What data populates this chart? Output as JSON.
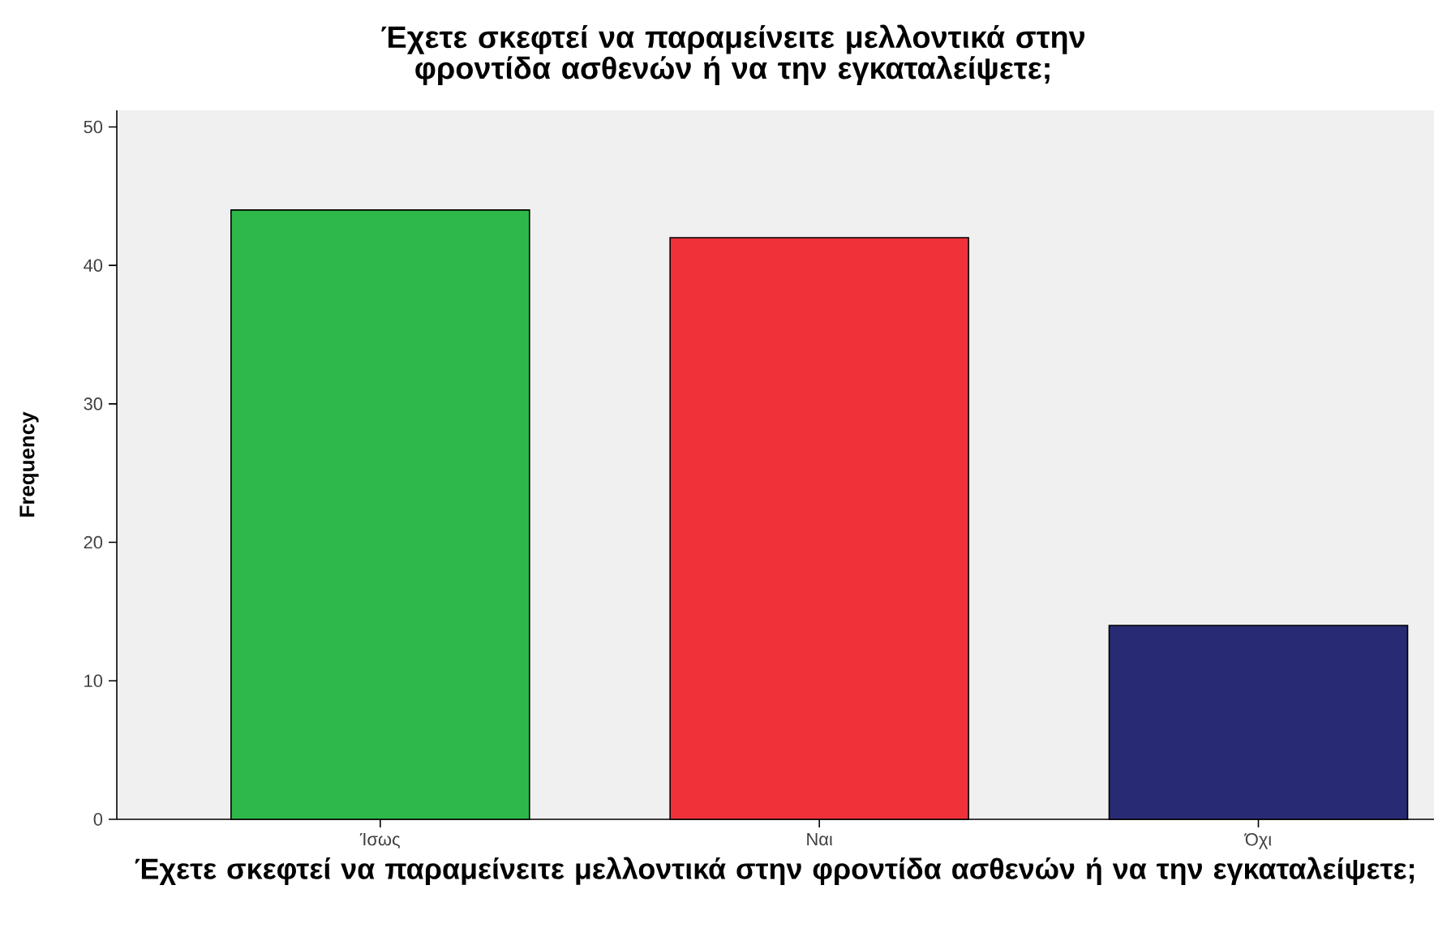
{
  "chart_data": {
    "type": "bar",
    "title": "Έχετε σκεφτεί να παραμείνειτε μελλοντικά στην φροντίδα ασθενών ή να την εγκαταλείψετε;",
    "xlabel": "Έχετε σκεφτεί να παραμείνειτε μελλοντικά στην φροντίδα ασθενών ή να την εγκαταλείψετε;",
    "ylabel": "Frequency",
    "categories": [
      "Ίσως",
      "Ναι",
      "Όχι"
    ],
    "values": [
      44,
      42,
      14
    ],
    "colors": [
      "#2eb84a",
      "#ef323a",
      "#282a74"
    ],
    "ylim": [
      0,
      51.2
    ],
    "yticks": [
      0,
      10,
      20,
      30,
      40,
      50
    ],
    "grid": false
  }
}
